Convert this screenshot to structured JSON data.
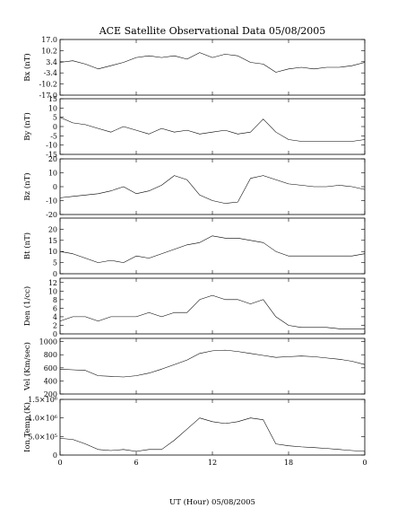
{
  "chart_data": {
    "type": "line",
    "title": "ACE Satellite Observational Data   05/08/2005",
    "xlabel": "UT (Hour)   05/08/2005",
    "x_ticks": [
      "0",
      "6",
      "12",
      "18",
      "0"
    ],
    "x_tick_hours": [
      0,
      6,
      12,
      18,
      24
    ],
    "xlim": [
      0,
      24
    ],
    "grid": false,
    "panels": [
      {
        "ylabel": "Bx (nT)",
        "ylim": [
          -17,
          17
        ],
        "y_ticks": [
          -17.0,
          -10.2,
          -3.4,
          3.4,
          10.2,
          17.0
        ],
        "y_tick_labels": [
          "-17.0",
          "-10.2",
          "-3.4",
          "3.4",
          "10.2",
          "17.0"
        ],
        "x": [
          0,
          1,
          2,
          3,
          4,
          5,
          6,
          7,
          8,
          9,
          10,
          11,
          12,
          13,
          14,
          15,
          16,
          17,
          18,
          19,
          20,
          21,
          22,
          23,
          24
        ],
        "y": [
          3,
          4,
          2,
          -1,
          1,
          3,
          6,
          7,
          6,
          7,
          5,
          9,
          6,
          8,
          7,
          3,
          2,
          -3,
          -1,
          0,
          -1,
          0,
          0,
          1,
          3
        ]
      },
      {
        "ylabel": "By (nT)",
        "ylim": [
          -15,
          15
        ],
        "y_ticks": [
          -15,
          -10,
          -5,
          0,
          5,
          10,
          15
        ],
        "y_tick_labels": [
          "-15",
          "-10",
          "-5",
          "0",
          "5",
          "10",
          "15"
        ],
        "x": [
          0,
          1,
          2,
          3,
          4,
          5,
          6,
          7,
          8,
          9,
          10,
          11,
          12,
          13,
          14,
          15,
          16,
          17,
          18,
          19,
          20,
          21,
          22,
          23,
          24
        ],
        "y": [
          5,
          2,
          1,
          -1,
          -3,
          0,
          -2,
          -4,
          -1,
          -3,
          -2,
          -4,
          -3,
          -2,
          -4,
          -3,
          4,
          -3,
          -7,
          -8,
          -8,
          -8,
          -8,
          -8,
          -7
        ]
      },
      {
        "ylabel": "Bz (nT)",
        "ylim": [
          -20,
          20
        ],
        "y_ticks": [
          -20,
          -10,
          0,
          10,
          20
        ],
        "y_tick_labels": [
          "-20",
          "-10",
          "0",
          "10",
          "20"
        ],
        "x": [
          0,
          1,
          2,
          3,
          4,
          5,
          6,
          7,
          8,
          9,
          10,
          11,
          12,
          13,
          14,
          15,
          16,
          17,
          18,
          19,
          20,
          21,
          22,
          23,
          24
        ],
        "y": [
          -8,
          -7,
          -6,
          -5,
          -3,
          0,
          -5,
          -3,
          1,
          8,
          5,
          -6,
          -10,
          -12,
          -11,
          6,
          8,
          5,
          2,
          1,
          0,
          0,
          1,
          0,
          -2
        ]
      },
      {
        "ylabel": "Bt (nT)",
        "ylim": [
          0,
          25
        ],
        "y_ticks": [
          0,
          5,
          10,
          15,
          20
        ],
        "y_tick_labels": [
          "0",
          "5",
          "10",
          "15",
          "20"
        ],
        "x": [
          0,
          1,
          2,
          3,
          4,
          5,
          6,
          7,
          8,
          9,
          10,
          11,
          12,
          13,
          14,
          15,
          16,
          17,
          18,
          19,
          20,
          21,
          22,
          23,
          24
        ],
        "y": [
          10,
          9,
          7,
          5,
          6,
          5,
          8,
          7,
          9,
          11,
          13,
          14,
          17,
          16,
          16,
          15,
          14,
          10,
          8,
          8,
          8,
          8,
          8,
          8,
          9
        ]
      },
      {
        "ylabel": "Den (1/cc)",
        "ylim": [
          0,
          13
        ],
        "y_ticks": [
          0,
          2,
          4,
          6,
          8,
          10,
          12
        ],
        "y_tick_labels": [
          "0",
          "2",
          "4",
          "6",
          "8",
          "10",
          "12"
        ],
        "x": [
          0,
          1,
          2,
          3,
          4,
          5,
          6,
          7,
          8,
          9,
          10,
          11,
          12,
          13,
          14,
          15,
          16,
          17,
          18,
          19,
          20,
          21,
          22,
          23,
          24
        ],
        "y": [
          3,
          4,
          4,
          3,
          4,
          4,
          4,
          5,
          4,
          5,
          5,
          8,
          9,
          8,
          8,
          7,
          8,
          4,
          2,
          1.5,
          1.5,
          1.5,
          1.2,
          1.2,
          1.2
        ]
      },
      {
        "ylabel": "Vel (Km/sec)",
        "ylim": [
          200,
          1050
        ],
        "y_ticks": [
          200,
          400,
          600,
          800,
          1000
        ],
        "y_tick_labels": [
          "200",
          "400",
          "600",
          "800",
          "1000"
        ],
        "x": [
          0,
          1,
          2,
          3,
          4,
          5,
          6,
          7,
          8,
          9,
          10,
          11,
          12,
          13,
          14,
          15,
          16,
          17,
          18,
          19,
          20,
          21,
          22,
          23,
          24
        ],
        "y": [
          580,
          570,
          560,
          480,
          470,
          460,
          480,
          520,
          580,
          650,
          720,
          820,
          860,
          870,
          850,
          820,
          790,
          760,
          770,
          780,
          770,
          750,
          730,
          700,
          650
        ]
      },
      {
        "ylabel": "Ion Temp (K)",
        "ylim": [
          0,
          1500000
        ],
        "y_ticks": [
          0,
          500000,
          1000000,
          1500000
        ],
        "y_tick_labels": [
          "0",
          "5.0×10⁵",
          "1.0×10⁶",
          "1.5×10⁶"
        ],
        "x": [
          0,
          1,
          2,
          3,
          4,
          5,
          6,
          7,
          8,
          9,
          10,
          11,
          12,
          13,
          14,
          15,
          16,
          17,
          18,
          19,
          20,
          21,
          22,
          23,
          24
        ],
        "y": [
          450000,
          420000,
          300000,
          150000,
          120000,
          150000,
          100000,
          150000,
          150000,
          400000,
          700000,
          1000000,
          900000,
          850000,
          900000,
          1000000,
          950000,
          300000,
          250000,
          220000,
          200000,
          180000,
          150000,
          120000,
          100000
        ]
      }
    ]
  }
}
